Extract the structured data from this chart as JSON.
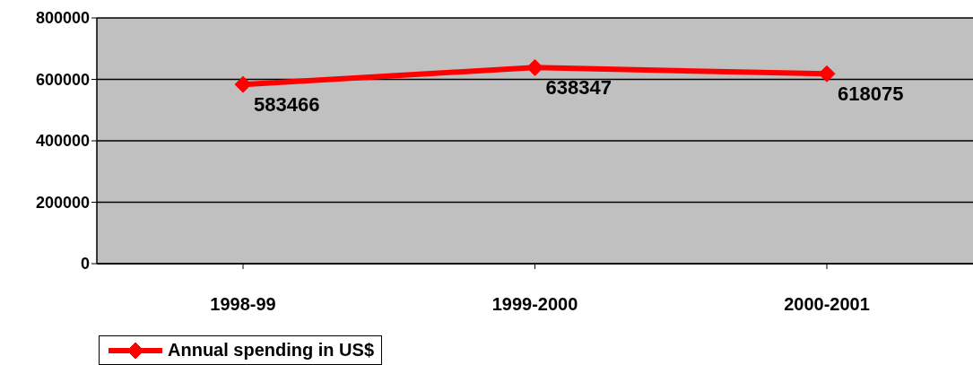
{
  "chart_data": {
    "type": "line",
    "categories": [
      "1998-99",
      "1999-2000",
      "2000-2001"
    ],
    "series": [
      {
        "name": "Annual spending in US$",
        "color": "#ff0000",
        "values": [
          583466,
          638347,
          618075
        ]
      }
    ],
    "ylim": [
      0,
      800000
    ],
    "yticks": [
      0,
      200000,
      400000,
      600000,
      800000
    ],
    "grid": "y",
    "legend": "bottom",
    "marker": "diamond",
    "line_style": "solid",
    "data_labels": true
  }
}
